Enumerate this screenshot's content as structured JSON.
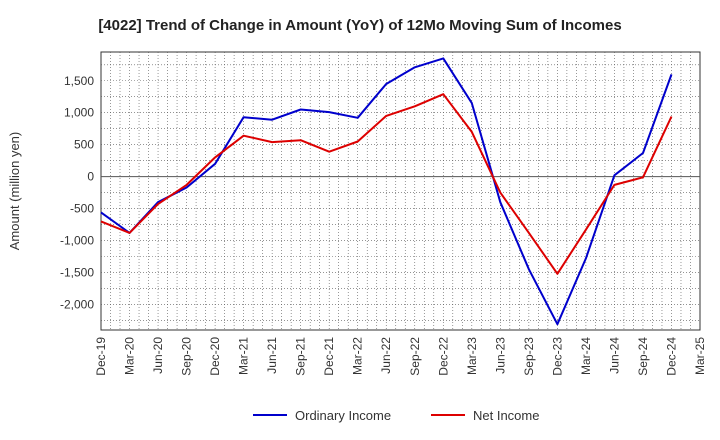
{
  "chart_data": {
    "type": "line",
    "title": "[4022]  Trend of Change in Amount (YoY) of 12Mo Moving Sum of Incomes",
    "xlabel": "",
    "ylabel": "Amount (million yen)",
    "ylim": [
      -2400,
      1950
    ],
    "yticks": [
      1500,
      1000,
      500,
      0,
      -500,
      -1000,
      -1500,
      -2000
    ],
    "ytick_labels": [
      "1,500",
      "1,000",
      "500",
      "0",
      "-500",
      "-1,000",
      "-1,500",
      "-2,000"
    ],
    "grid": true,
    "legend_position": "bottom-center",
    "categories": [
      "Dec-19",
      "Mar-20",
      "Jun-20",
      "Sep-20",
      "Dec-20",
      "Mar-21",
      "Jun-21",
      "Sep-21",
      "Dec-21",
      "Mar-22",
      "Jun-22",
      "Sep-22",
      "Dec-22",
      "Mar-23",
      "Jun-23",
      "Sep-23",
      "Dec-23",
      "Mar-24",
      "Jun-24",
      "Sep-24",
      "Dec-24",
      "Mar-25"
    ],
    "series": [
      {
        "name": "Ordinary Income",
        "color": "#0000cc",
        "values": [
          -560,
          -880,
          -400,
          -170,
          200,
          930,
          890,
          1050,
          1010,
          920,
          1450,
          1710,
          1850,
          1150,
          -400,
          -1450,
          -2310,
          -1280,
          20,
          370,
          1600,
          null
        ]
      },
      {
        "name": "Net Income",
        "color": "#dd0000",
        "values": [
          -700,
          -880,
          -430,
          -130,
          300,
          640,
          540,
          570,
          390,
          550,
          950,
          1100,
          1290,
          700,
          -250,
          -880,
          -1520,
          -830,
          -130,
          -10,
          940,
          null
        ]
      }
    ]
  }
}
